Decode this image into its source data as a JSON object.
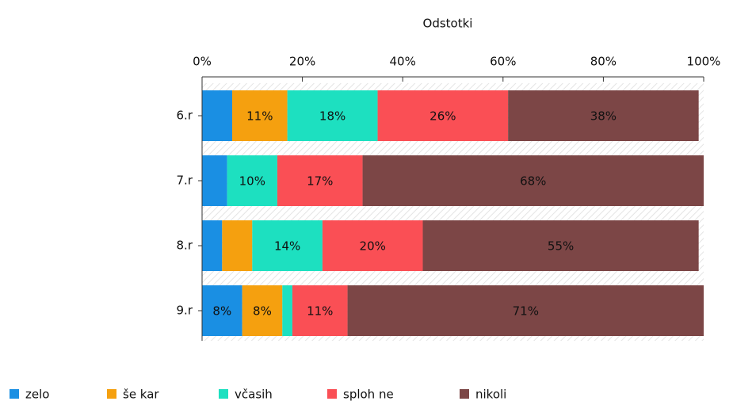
{
  "chart_data": {
    "type": "stacked_bar_horizontal",
    "title": "Odstotki",
    "categories": [
      "6.r",
      "7.r",
      "8.r",
      "9.r"
    ],
    "series": [
      {
        "name": "zelo",
        "color": "#1a8fe3",
        "values": [
          6,
          5,
          4,
          8
        ],
        "value_labels": [
          null,
          null,
          null,
          "8%"
        ]
      },
      {
        "name": "še kar",
        "color": "#f5a00f",
        "values": [
          11,
          0,
          6,
          8
        ],
        "value_labels": [
          "11%",
          null,
          null,
          "8%"
        ]
      },
      {
        "name": "včasih",
        "color": "#1de0c0",
        "values": [
          18,
          10,
          14,
          2
        ],
        "value_labels": [
          "18%",
          "10%",
          "14%",
          null
        ]
      },
      {
        "name": "sploh ne",
        "color": "#fa4f55",
        "values": [
          26,
          17,
          20,
          11
        ],
        "value_labels": [
          "26%",
          "17%",
          "20%",
          "11%"
        ]
      },
      {
        "name": "nikoli",
        "color": "#7c4646",
        "values": [
          38,
          68,
          55,
          71
        ],
        "value_labels": [
          "38%",
          "68%",
          "55%",
          "71%"
        ]
      }
    ],
    "xlim": [
      0,
      100
    ],
    "xticks": [
      {
        "value": 0,
        "label": "0%"
      },
      {
        "value": 20,
        "label": "20%"
      },
      {
        "value": 40,
        "label": "40%"
      },
      {
        "value": 60,
        "label": "60%"
      },
      {
        "value": 80,
        "label": "80%"
      },
      {
        "value": 100,
        "label": "100%"
      }
    ],
    "legend": "bottom"
  }
}
